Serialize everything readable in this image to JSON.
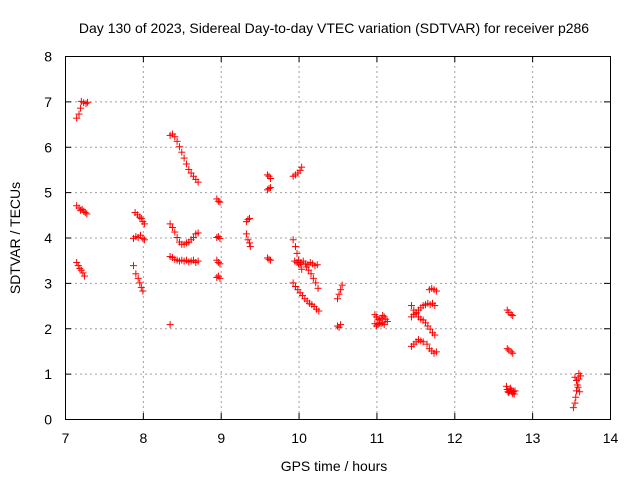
{
  "chart_data": {
    "type": "scatter",
    "title": "Day 130 of 2023, Sidereal Day-to-day VTEC variation (SDTVAR) for receiver p286",
    "xlabel": "GPS time / hours",
    "ylabel": "SDTVAR / TECUs",
    "xlim": [
      7,
      14
    ],
    "ylim": [
      0,
      8
    ],
    "x_ticks": [
      "7",
      "8",
      "9",
      "10",
      "11",
      "12",
      "13",
      "14"
    ],
    "y_ticks": [
      "0",
      "1",
      "2",
      "3",
      "4",
      "5",
      "6",
      "7",
      "8"
    ],
    "grid": true,
    "marker": "+",
    "colors": {
      "series": "#ff0000",
      "grid": "#a0a0a0",
      "axis": "#000000"
    },
    "series": [
      {
        "name": "SDTVAR",
        "segments": [
          [
            [
              7.15,
              6.63
            ],
            [
              7.18,
              6.72
            ],
            [
              7.2,
              6.85
            ],
            [
              7.21,
              7.0
            ],
            [
              7.24,
              6.97
            ],
            [
              7.27,
              6.95
            ],
            [
              7.29,
              6.98
            ]
          ],
          [
            [
              7.15,
              4.7
            ],
            [
              7.18,
              4.65
            ],
            [
              7.2,
              4.6
            ],
            [
              7.22,
              4.62
            ],
            [
              7.24,
              4.58
            ],
            [
              7.26,
              4.55
            ],
            [
              7.28,
              4.52
            ]
          ],
          [
            [
              7.15,
              3.45
            ],
            [
              7.17,
              3.38
            ],
            [
              7.19,
              3.32
            ],
            [
              7.21,
              3.28
            ],
            [
              7.23,
              3.22
            ],
            [
              7.25,
              3.15
            ]
          ],
          [
            [
              7.9,
              4.55
            ],
            [
              7.93,
              4.5
            ],
            [
              7.96,
              4.45
            ],
            [
              7.98,
              4.42
            ],
            [
              8.0,
              4.35
            ],
            [
              8.02,
              4.3
            ]
          ],
          [
            [
              7.88,
              3.98
            ],
            [
              7.91,
              4.02
            ],
            [
              7.94,
              4.0
            ],
            [
              7.97,
              4.05
            ],
            [
              8.0,
              3.98
            ],
            [
              8.02,
              3.95
            ]
          ],
          [
            [
              7.88,
              3.38
            ],
            [
              7.91,
              3.2
            ],
            [
              7.94,
              3.1
            ],
            [
              7.96,
              3.0
            ],
            [
              7.98,
              2.9
            ],
            [
              8.0,
              2.82
            ]
          ],
          [
            [
              8.35,
              6.25
            ],
            [
              8.38,
              6.28
            ],
            [
              8.41,
              6.22
            ],
            [
              8.44,
              6.12
            ],
            [
              8.47,
              6.0
            ],
            [
              8.5,
              5.88
            ],
            [
              8.53,
              5.75
            ],
            [
              8.56,
              5.62
            ],
            [
              8.59,
              5.5
            ],
            [
              8.62,
              5.42
            ],
            [
              8.65,
              5.35
            ],
            [
              8.68,
              5.28
            ],
            [
              8.71,
              5.22
            ]
          ],
          [
            [
              8.35,
              4.3
            ],
            [
              8.38,
              4.22
            ],
            [
              8.41,
              4.12
            ],
            [
              8.44,
              4.0
            ],
            [
              8.47,
              3.9
            ],
            [
              8.5,
              3.85
            ],
            [
              8.53,
              3.85
            ],
            [
              8.56,
              3.88
            ],
            [
              8.59,
              3.9
            ],
            [
              8.62,
              3.95
            ],
            [
              8.65,
              4.0
            ],
            [
              8.68,
              4.08
            ],
            [
              8.71,
              4.1
            ]
          ],
          [
            [
              8.35,
              3.58
            ],
            [
              8.38,
              3.56
            ],
            [
              8.41,
              3.52
            ],
            [
              8.44,
              3.5
            ],
            [
              8.47,
              3.48
            ],
            [
              8.5,
              3.5
            ],
            [
              8.53,
              3.48
            ],
            [
              8.56,
              3.5
            ],
            [
              8.59,
              3.46
            ],
            [
              8.62,
              3.48
            ],
            [
              8.65,
              3.5
            ],
            [
              8.68,
              3.45
            ],
            [
              8.71,
              3.48
            ]
          ],
          [
            [
              8.35,
              2.08
            ]
          ],
          [
            [
              8.95,
              4.85
            ],
            [
              8.97,
              4.8
            ],
            [
              8.99,
              4.78
            ]
          ],
          [
            [
              8.95,
              4.0
            ],
            [
              8.97,
              4.02
            ],
            [
              8.99,
              3.98
            ]
          ],
          [
            [
              8.95,
              3.5
            ],
            [
              8.97,
              3.45
            ],
            [
              8.99,
              3.42
            ]
          ],
          [
            [
              8.95,
              3.12
            ],
            [
              8.97,
              3.15
            ],
            [
              8.99,
              3.1
            ]
          ],
          [
            [
              9.33,
              4.35
            ],
            [
              9.35,
              4.4
            ],
            [
              9.37,
              4.42
            ]
          ],
          [
            [
              9.33,
              4.08
            ],
            [
              9.35,
              3.95
            ],
            [
              9.37,
              3.88
            ],
            [
              9.38,
              3.8
            ]
          ],
          [
            [
              9.6,
              5.38
            ],
            [
              9.62,
              5.35
            ],
            [
              9.64,
              5.3
            ]
          ],
          [
            [
              9.6,
              5.05
            ],
            [
              9.62,
              5.08
            ],
            [
              9.64,
              5.1
            ]
          ],
          [
            [
              9.6,
              3.55
            ],
            [
              9.62,
              3.52
            ],
            [
              9.64,
              3.5
            ]
          ],
          [
            [
              9.93,
              5.35
            ],
            [
              9.96,
              5.38
            ],
            [
              9.99,
              5.42
            ],
            [
              10.02,
              5.48
            ],
            [
              10.04,
              5.55
            ]
          ],
          [
            [
              9.93,
              3.95
            ],
            [
              9.96,
              3.8
            ],
            [
              9.98,
              3.65
            ],
            [
              10.0,
              3.5
            ],
            [
              10.02,
              3.4
            ],
            [
              10.04,
              3.3
            ]
          ],
          [
            [
              9.95,
              3.48
            ],
            [
              9.98,
              3.45
            ],
            [
              10.0,
              3.42
            ],
            [
              10.03,
              3.45
            ],
            [
              10.06,
              3.48
            ],
            [
              10.09,
              3.42
            ],
            [
              10.12,
              3.4
            ],
            [
              10.15,
              3.45
            ],
            [
              10.18,
              3.42
            ],
            [
              10.21,
              3.38
            ],
            [
              10.24,
              3.4
            ]
          ],
          [
            [
              10.1,
              3.35
            ],
            [
              10.13,
              3.28
            ],
            [
              10.16,
              3.2
            ],
            [
              10.19,
              3.1
            ],
            [
              10.22,
              3.0
            ],
            [
              10.25,
              2.88
            ]
          ],
          [
            [
              9.93,
              3.0
            ],
            [
              9.96,
              2.92
            ],
            [
              9.99,
              2.85
            ],
            [
              10.02,
              2.78
            ],
            [
              10.05,
              2.72
            ],
            [
              10.08,
              2.65
            ],
            [
              10.11,
              2.6
            ],
            [
              10.14,
              2.55
            ],
            [
              10.17,
              2.52
            ],
            [
              10.2,
              2.48
            ],
            [
              10.23,
              2.42
            ],
            [
              10.26,
              2.38
            ]
          ],
          [
            [
              10.5,
              2.05
            ],
            [
              10.52,
              2.02
            ],
            [
              10.54,
              2.08
            ]
          ],
          [
            [
              10.5,
              2.65
            ],
            [
              10.52,
              2.75
            ],
            [
              10.54,
              2.85
            ],
            [
              10.56,
              2.95
            ]
          ],
          [
            [
              10.98,
              2.3
            ],
            [
              11.0,
              2.25
            ],
            [
              11.02,
              2.2
            ],
            [
              11.04,
              2.18
            ],
            [
              11.06,
              2.22
            ],
            [
              11.08,
              2.28
            ],
            [
              11.1,
              2.25
            ],
            [
              11.12,
              2.2
            ],
            [
              11.14,
              2.15
            ]
          ],
          [
            [
              10.98,
              2.1
            ],
            [
              11.0,
              2.05
            ],
            [
              11.02,
              2.08
            ],
            [
              11.04,
              2.12
            ],
            [
              11.06,
              2.1
            ],
            [
              11.08,
              2.12
            ],
            [
              11.1,
              2.08
            ]
          ],
          [
            [
              11.45,
              1.6
            ],
            [
              11.48,
              1.65
            ],
            [
              11.51,
              1.7
            ],
            [
              11.54,
              1.75
            ],
            [
              11.57,
              1.72
            ],
            [
              11.6,
              1.7
            ]
          ],
          [
            [
              11.45,
              2.5
            ],
            [
              11.48,
              2.4
            ],
            [
              11.51,
              2.32
            ],
            [
              11.54,
              2.25
            ],
            [
              11.57,
              2.2
            ],
            [
              11.6,
              2.18
            ],
            [
              11.63,
              2.12
            ],
            [
              11.66,
              2.05
            ],
            [
              11.69,
              1.98
            ],
            [
              11.72,
              1.9
            ],
            [
              11.75,
              1.85
            ]
          ],
          [
            [
              11.45,
              2.25
            ],
            [
              11.48,
              2.3
            ],
            [
              11.51,
              2.35
            ],
            [
              11.54,
              2.4
            ],
            [
              11.57,
              2.45
            ],
            [
              11.6,
              2.5
            ],
            [
              11.63,
              2.52
            ],
            [
              11.66,
              2.55
            ],
            [
              11.69,
              2.52
            ],
            [
              11.72,
              2.55
            ],
            [
              11.75,
              2.5
            ]
          ],
          [
            [
              11.65,
              1.65
            ],
            [
              11.68,
              1.55
            ],
            [
              11.71,
              1.5
            ],
            [
              11.74,
              1.45
            ],
            [
              11.77,
              1.48
            ]
          ],
          [
            [
              11.68,
              2.85
            ],
            [
              11.71,
              2.88
            ],
            [
              11.74,
              2.85
            ],
            [
              11.77,
              2.82
            ]
          ],
          [
            [
              12.68,
              2.4
            ],
            [
              12.7,
              2.35
            ],
            [
              12.73,
              2.3
            ],
            [
              12.75,
              2.28
            ]
          ],
          [
            [
              12.68,
              1.55
            ],
            [
              12.7,
              1.52
            ],
            [
              12.73,
              1.48
            ],
            [
              12.75,
              1.45
            ]
          ],
          [
            [
              12.67,
              0.72
            ],
            [
              12.68,
              0.65
            ],
            [
              12.69,
              0.6
            ],
            [
              12.7,
              0.58
            ],
            [
              12.71,
              0.62
            ],
            [
              12.72,
              0.68
            ],
            [
              12.73,
              0.64
            ],
            [
              12.74,
              0.6
            ],
            [
              12.75,
              0.56
            ],
            [
              12.76,
              0.6
            ],
            [
              12.77,
              0.55
            ],
            [
              12.78,
              0.62
            ]
          ],
          [
            [
              13.53,
              0.25
            ],
            [
              13.55,
              0.35
            ],
            [
              13.56,
              0.48
            ],
            [
              13.57,
              0.62
            ],
            [
              13.58,
              0.75
            ],
            [
              13.6,
              0.88
            ],
            [
              13.6,
              1.0
            ],
            [
              13.62,
              0.95
            ]
          ],
          [
            [
              13.55,
              0.92
            ],
            [
              13.57,
              0.85
            ],
            [
              13.59,
              0.7
            ],
            [
              13.61,
              0.6
            ]
          ]
        ]
      }
    ]
  }
}
